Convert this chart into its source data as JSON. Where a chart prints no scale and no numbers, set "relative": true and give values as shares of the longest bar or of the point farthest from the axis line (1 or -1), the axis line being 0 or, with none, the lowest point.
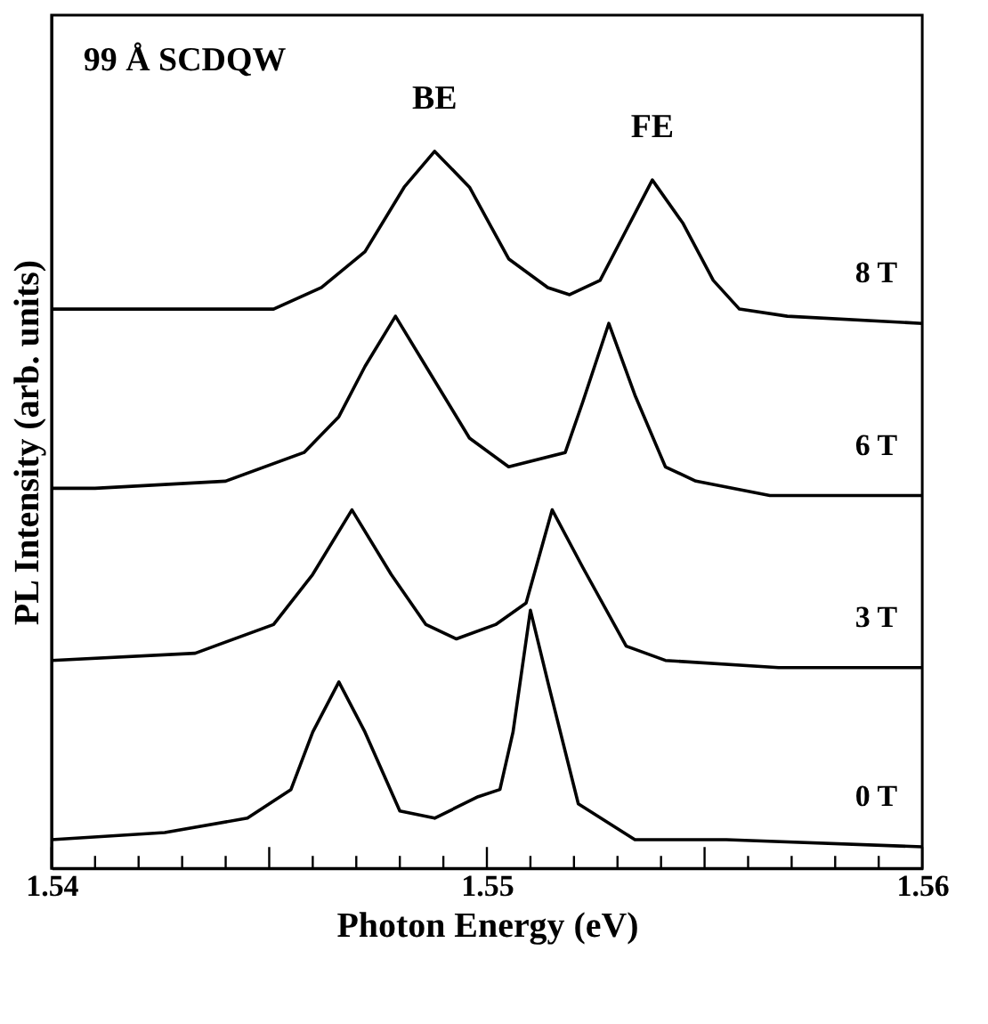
{
  "chart_data": {
    "type": "line",
    "relative": true,
    "xlabel": "Photon Energy (eV)",
    "ylabel": "PL Intensity (arb. units)",
    "xlim": [
      1.54,
      1.56
    ],
    "xticks": [
      1.54,
      {
        "value": 1.541,
        "label": null
      },
      {
        "value": 1.542,
        "label": null
      },
      {
        "value": 1.543,
        "label": null
      },
      {
        "value": 1.544,
        "label": null
      },
      {
        "value": 1.545,
        "label": null
      },
      {
        "value": 1.546,
        "label": null
      },
      {
        "value": 1.547,
        "label": null
      },
      {
        "value": 1.548,
        "label": null
      },
      {
        "value": 1.549,
        "label": null
      },
      1.55,
      {
        "value": 1.551,
        "label": null
      },
      {
        "value": 1.552,
        "label": null
      },
      {
        "value": 1.553,
        "label": null
      },
      {
        "value": 1.554,
        "label": null
      },
      {
        "value": 1.555,
        "label": null
      },
      {
        "value": 1.556,
        "label": null
      },
      {
        "value": 1.557,
        "label": null
      },
      {
        "value": 1.558,
        "label": null
      },
      {
        "value": 1.559,
        "label": null
      },
      1.56
    ],
    "grid": false,
    "legend": false,
    "marker": "none",
    "line_style": "solid",
    "annotations": [
      "99 Å SCDQW",
      {
        "text": "BE",
        "x": 1.5488,
        "y": 1.0
      },
      {
        "text": "FE",
        "x": 1.5538,
        "y": 0.96
      }
    ],
    "series": [
      {
        "name": "8 T",
        "color": "#000000",
        "x": [
          1.54,
          1.5423,
          1.5451,
          1.5462,
          1.5472,
          1.5481,
          1.5488,
          1.5496,
          1.5505,
          1.5514,
          1.5519,
          1.5526,
          1.5532,
          1.5538,
          1.5545,
          1.5552,
          1.5558,
          1.5569,
          1.56
        ],
        "values": [
          0.78,
          0.78,
          0.78,
          0.81,
          0.86,
          0.95,
          1.0,
          0.95,
          0.85,
          0.81,
          0.8,
          0.82,
          0.89,
          0.96,
          0.9,
          0.82,
          0.78,
          0.77,
          0.76
        ]
      },
      {
        "name": "6 T",
        "color": "#000000",
        "x": [
          1.54,
          1.541,
          1.544,
          1.5458,
          1.5466,
          1.5472,
          1.5479,
          1.5486,
          1.5496,
          1.5505,
          1.5518,
          1.5522,
          1.5528,
          1.5534,
          1.5541,
          1.5548,
          1.5565,
          1.56
        ],
        "values": [
          0.53,
          0.53,
          0.54,
          0.58,
          0.63,
          0.7,
          0.77,
          0.7,
          0.6,
          0.56,
          0.58,
          0.65,
          0.76,
          0.66,
          0.56,
          0.54,
          0.52,
          0.52
        ]
      },
      {
        "name": "3 T",
        "color": "#000000",
        "x": [
          1.54,
          1.5433,
          1.5451,
          1.546,
          1.5469,
          1.5478,
          1.5486,
          1.5493,
          1.5502,
          1.5509,
          1.5515,
          1.5522,
          1.5532,
          1.5541,
          1.5567,
          1.56
        ],
        "values": [
          0.29,
          0.3,
          0.34,
          0.41,
          0.5,
          0.41,
          0.34,
          0.32,
          0.34,
          0.37,
          0.5,
          0.42,
          0.31,
          0.29,
          0.28,
          0.28
        ]
      },
      {
        "name": "0 T",
        "color": "#000000",
        "x": [
          1.54,
          1.5426,
          1.5445,
          1.5455,
          1.546,
          1.5466,
          1.5472,
          1.548,
          1.5488,
          1.5498,
          1.5503,
          1.5506,
          1.551,
          1.5514,
          1.5521,
          1.5534,
          1.5555,
          1.56
        ],
        "values": [
          0.04,
          0.05,
          0.07,
          0.11,
          0.19,
          0.26,
          0.19,
          0.08,
          0.07,
          0.1,
          0.11,
          0.19,
          0.36,
          0.26,
          0.09,
          0.04,
          0.04,
          0.03
        ]
      }
    ]
  }
}
